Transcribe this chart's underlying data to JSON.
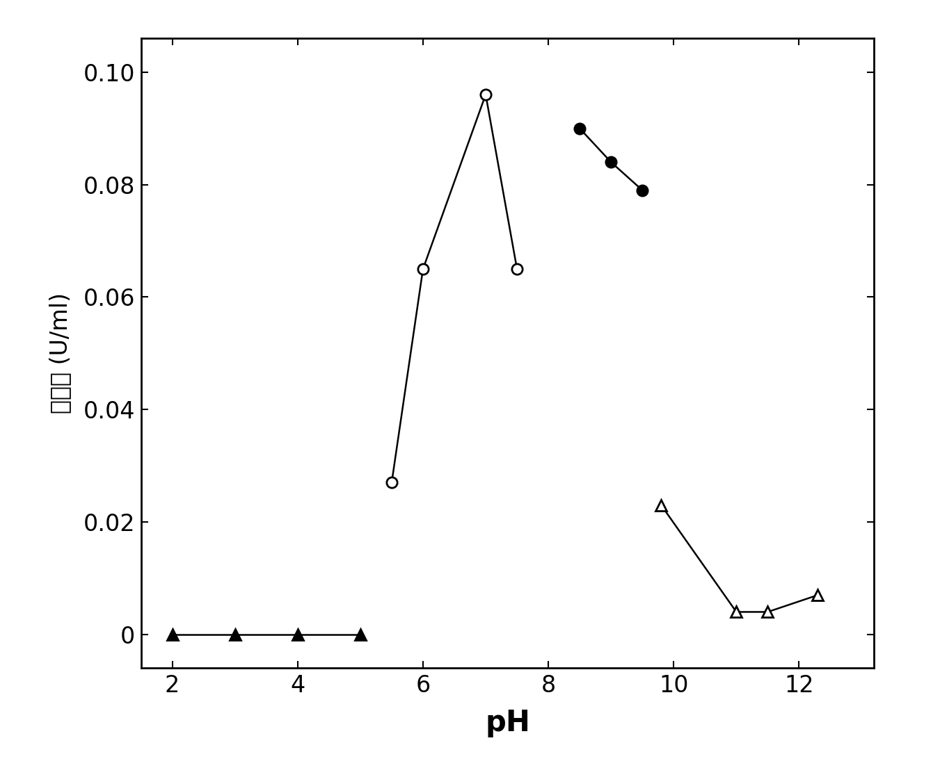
{
  "xlabel": "pH",
  "ylabel": "酶活性 (U/ml)",
  "xlim": [
    1.5,
    13.2
  ],
  "ylim": [
    -0.006,
    0.106
  ],
  "yticks": [
    0,
    0.02,
    0.04,
    0.06,
    0.08,
    0.1
  ],
  "xticks": [
    2,
    4,
    6,
    8,
    10,
    12
  ],
  "series_open_circle": {
    "x": [
      5.5,
      6.0,
      7.0,
      7.5
    ],
    "y": [
      0.027,
      0.065,
      0.096,
      0.065
    ]
  },
  "series_filled_circle": {
    "x": [
      8.5,
      9.0,
      9.5
    ],
    "y": [
      0.09,
      0.084,
      0.079
    ]
  },
  "series_open_triangle": {
    "x": [
      9.8,
      11.0,
      11.5,
      12.3
    ],
    "y": [
      0.023,
      0.004,
      0.004,
      0.007
    ]
  },
  "series_filled_triangle": {
    "x": [
      2,
      3,
      4,
      5
    ],
    "y": [
      0.0,
      0.0,
      0.0,
      0.0
    ]
  },
  "bg_color": "#ffffff",
  "line_color": "#000000",
  "marker_size": 11,
  "line_width": 1.8
}
